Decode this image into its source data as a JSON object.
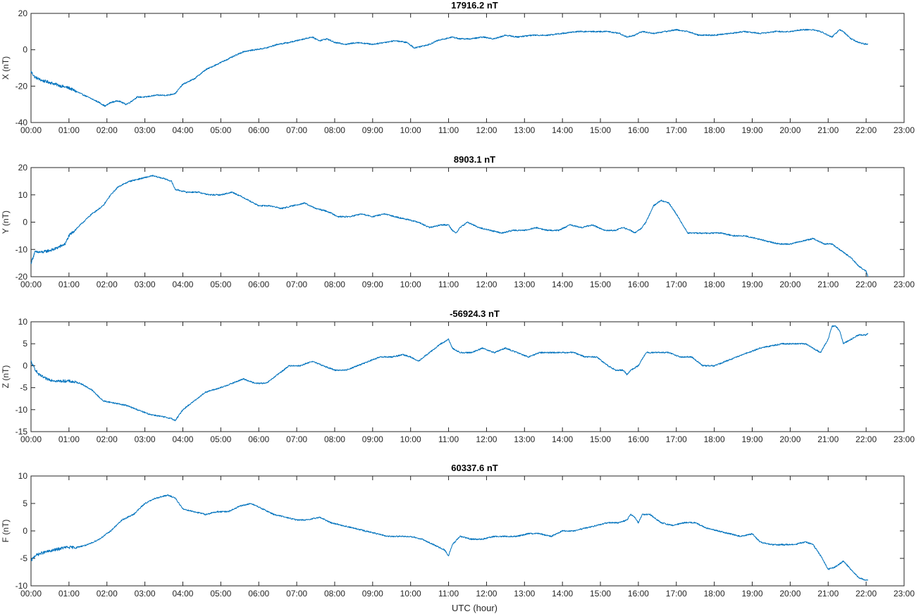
{
  "chart_data": [
    {
      "type": "line",
      "title": "17916.2 nT",
      "ylabel": "X (nT)",
      "xlabel": "",
      "xlim": [
        0,
        23
      ],
      "ylim": [
        -40,
        20
      ],
      "yticks": [
        -40,
        -20,
        0,
        20
      ],
      "xticks": [
        "00:00",
        "01:00",
        "02:00",
        "03:00",
        "04:00",
        "05:00",
        "06:00",
        "07:00",
        "08:00",
        "09:00",
        "10:00",
        "11:00",
        "12:00",
        "13:00",
        "14:00",
        "15:00",
        "16:00",
        "17:00",
        "18:00",
        "19:00",
        "20:00",
        "21:00",
        "22:00",
        "23:00"
      ],
      "series": [
        {
          "color": "#0072bd",
          "x": [
            0.0,
            0.1,
            0.3,
            0.5,
            0.8,
            1.0,
            1.2,
            1.5,
            1.8,
            1.95,
            2.1,
            2.3,
            2.5,
            2.6,
            2.8,
            3.0,
            3.3,
            3.6,
            3.8,
            4.0,
            4.3,
            4.6,
            4.8,
            5.0,
            5.3,
            5.6,
            5.9,
            6.2,
            6.5,
            6.8,
            7.0,
            7.2,
            7.4,
            7.6,
            7.8,
            8.0,
            8.3,
            8.6,
            9.0,
            9.3,
            9.6,
            9.9,
            10.1,
            10.3,
            10.5,
            10.7,
            10.9,
            11.1,
            11.3,
            11.6,
            11.9,
            12.2,
            12.5,
            12.8,
            13.2,
            13.6,
            14.0,
            14.4,
            14.8,
            15.2,
            15.5,
            15.7,
            15.9,
            16.1,
            16.4,
            16.7,
            17.0,
            17.3,
            17.6,
            18.0,
            18.4,
            18.8,
            19.2,
            19.6,
            20.0,
            20.3,
            20.6,
            20.8,
            21.0,
            21.1,
            21.2,
            21.3,
            21.4,
            21.6,
            21.8,
            22.0,
            22.05
          ],
          "values": [
            -12,
            -15,
            -17,
            -18,
            -20,
            -21,
            -23,
            -26,
            -29,
            -31,
            -29,
            -28,
            -30,
            -29,
            -26,
            -26,
            -25,
            -25,
            -24,
            -19,
            -16,
            -11,
            -9,
            -7,
            -4,
            -1,
            0,
            1,
            3,
            4,
            5,
            6,
            7,
            5,
            6,
            4,
            3,
            4,
            3,
            4,
            5,
            4,
            1,
            2,
            3,
            5,
            6,
            7,
            6,
            6,
            7,
            6,
            8,
            7,
            8,
            8,
            9,
            10,
            10,
            10,
            9,
            7,
            8,
            10,
            9,
            10,
            11,
            10,
            8,
            8,
            9,
            10,
            9,
            10,
            10,
            11,
            11,
            10,
            8,
            7,
            9,
            11,
            10,
            6,
            4,
            3,
            3
          ]
        }
      ]
    },
    {
      "type": "line",
      "title": "8903.1 nT",
      "ylabel": "Y (nT)",
      "xlabel": "",
      "xlim": [
        0,
        23
      ],
      "ylim": [
        -20,
        20
      ],
      "yticks": [
        -20,
        -10,
        0,
        10,
        20
      ],
      "xticks": [
        "00:00",
        "01:00",
        "02:00",
        "03:00",
        "04:00",
        "05:00",
        "06:00",
        "07:00",
        "08:00",
        "09:00",
        "10:00",
        "11:00",
        "12:00",
        "13:00",
        "14:00",
        "15:00",
        "16:00",
        "17:00",
        "18:00",
        "19:00",
        "20:00",
        "21:00",
        "22:00",
        "23:00"
      ],
      "series": [
        {
          "color": "#0072bd",
          "x": [
            0.0,
            0.1,
            0.3,
            0.6,
            0.9,
            1.0,
            1.3,
            1.6,
            1.9,
            2.1,
            2.3,
            2.6,
            2.9,
            3.2,
            3.5,
            3.7,
            3.8,
            4.1,
            4.4,
            4.7,
            5.0,
            5.3,
            5.6,
            6.0,
            6.3,
            6.6,
            6.9,
            7.2,
            7.5,
            7.8,
            8.1,
            8.4,
            8.7,
            9.0,
            9.3,
            9.6,
            9.9,
            10.2,
            10.5,
            10.8,
            11.0,
            11.1,
            11.2,
            11.3,
            11.5,
            11.8,
            12.1,
            12.4,
            12.7,
            13.0,
            13.3,
            13.6,
            13.9,
            14.2,
            14.5,
            14.8,
            15.1,
            15.4,
            15.6,
            15.8,
            15.9,
            16.0,
            16.1,
            16.2,
            16.4,
            16.6,
            16.8,
            17.0,
            17.3,
            17.6,
            17.9,
            18.2,
            18.5,
            18.8,
            19.1,
            19.4,
            19.7,
            20.0,
            20.3,
            20.6,
            20.9,
            21.1,
            21.3,
            21.6,
            21.8,
            22.0,
            22.05
          ],
          "values": [
            -15,
            -11,
            -11,
            -10,
            -8,
            -5,
            -1,
            3,
            6,
            10,
            13,
            15,
            16,
            17,
            16,
            15,
            12,
            11,
            11,
            10,
            10,
            11,
            9,
            6,
            6,
            5,
            6,
            7,
            5,
            4,
            2,
            2,
            3,
            2,
            3,
            2,
            1,
            0,
            -2,
            -1,
            -1,
            -3,
            -4,
            -2,
            0,
            -2,
            -3,
            -4,
            -3,
            -3,
            -2,
            -3,
            -3,
            -1,
            -2,
            -1,
            -3,
            -3,
            -2,
            -3,
            -4,
            -3,
            -2,
            0,
            6,
            8,
            7,
            3,
            -4,
            -4,
            -4,
            -4,
            -5,
            -5,
            -6,
            -7,
            -8,
            -8,
            -7,
            -6,
            -8,
            -8,
            -10,
            -13,
            -16,
            -18,
            -20
          ]
        }
      ]
    },
    {
      "type": "line",
      "title": "-56924.3 nT",
      "ylabel": "Z (nT)",
      "xlabel": "",
      "xlim": [
        0,
        23
      ],
      "ylim": [
        -15,
        10
      ],
      "yticks": [
        -15,
        -10,
        -5,
        0,
        5,
        10
      ],
      "xticks": [
        "00:00",
        "01:00",
        "02:00",
        "03:00",
        "04:00",
        "05:00",
        "06:00",
        "07:00",
        "08:00",
        "09:00",
        "10:00",
        "11:00",
        "12:00",
        "13:00",
        "14:00",
        "15:00",
        "16:00",
        "17:00",
        "18:00",
        "19:00",
        "20:00",
        "21:00",
        "22:00",
        "23:00"
      ],
      "series": [
        {
          "color": "#0072bd",
          "x": [
            0.0,
            0.05,
            0.2,
            0.4,
            0.7,
            1.0,
            1.3,
            1.6,
            1.9,
            2.2,
            2.5,
            2.8,
            3.1,
            3.4,
            3.7,
            3.8,
            4.0,
            4.3,
            4.6,
            5.0,
            5.3,
            5.6,
            5.9,
            6.2,
            6.5,
            6.8,
            7.1,
            7.4,
            7.7,
            8.0,
            8.3,
            8.6,
            8.9,
            9.2,
            9.5,
            9.8,
            10.0,
            10.2,
            10.5,
            10.8,
            11.0,
            11.1,
            11.3,
            11.6,
            11.9,
            12.2,
            12.5,
            12.8,
            13.1,
            13.4,
            13.7,
            14.0,
            14.3,
            14.6,
            14.9,
            15.2,
            15.4,
            15.6,
            15.7,
            15.8,
            16.0,
            16.2,
            16.5,
            16.8,
            17.1,
            17.4,
            17.7,
            18.0,
            18.3,
            18.6,
            18.9,
            19.2,
            19.5,
            19.8,
            20.1,
            20.4,
            20.6,
            20.8,
            21.0,
            21.1,
            21.2,
            21.3,
            21.4,
            21.6,
            21.8,
            22.0,
            22.05
          ],
          "values": [
            1,
            0,
            -2,
            -3,
            -3.5,
            -3.5,
            -4,
            -5.5,
            -8,
            -8.5,
            -9,
            -10,
            -11,
            -11.5,
            -12,
            -12.5,
            -10,
            -8,
            -6,
            -5,
            -4,
            -3,
            -4,
            -4,
            -2,
            0,
            0,
            1,
            0,
            -1,
            -1,
            0,
            1,
            2,
            2,
            2.5,
            2,
            1,
            3,
            5,
            6,
            4,
            3,
            3,
            4,
            3,
            4,
            3,
            2,
            3,
            3,
            3,
            3,
            2,
            2,
            0,
            -1,
            -1,
            -2,
            -1,
            0,
            3,
            3,
            3,
            2,
            2,
            0,
            0,
            1,
            2,
            3,
            4,
            4.5,
            5,
            5,
            5,
            4,
            3,
            6,
            9,
            9,
            8,
            5,
            6,
            7,
            7,
            7.5
          ]
        }
      ]
    },
    {
      "type": "line",
      "title": "60337.6 nT",
      "ylabel": "F (nT)",
      "xlabel": "UTC (hour)",
      "xlim": [
        0,
        23
      ],
      "ylim": [
        -10,
        10
      ],
      "yticks": [
        -10,
        -5,
        0,
        5,
        10
      ],
      "xticks": [
        "00:00",
        "01:00",
        "02:00",
        "03:00",
        "04:00",
        "05:00",
        "06:00",
        "07:00",
        "08:00",
        "09:00",
        "10:00",
        "11:00",
        "12:00",
        "13:00",
        "14:00",
        "15:00",
        "16:00",
        "17:00",
        "18:00",
        "19:00",
        "20:00",
        "21:00",
        "22:00",
        "23:00"
      ],
      "series": [
        {
          "color": "#0072bd",
          "x": [
            0.0,
            0.1,
            0.3,
            0.6,
            0.9,
            1.2,
            1.5,
            1.8,
            2.1,
            2.4,
            2.7,
            3.0,
            3.3,
            3.6,
            3.8,
            4.0,
            4.3,
            4.6,
            4.9,
            5.2,
            5.5,
            5.8,
            6.1,
            6.4,
            6.7,
            7.0,
            7.3,
            7.6,
            7.9,
            8.2,
            8.5,
            8.8,
            9.1,
            9.4,
            9.7,
            10.0,
            10.3,
            10.6,
            10.9,
            11.0,
            11.1,
            11.3,
            11.6,
            11.9,
            12.2,
            12.5,
            12.8,
            13.1,
            13.4,
            13.7,
            14.0,
            14.3,
            14.6,
            14.9,
            15.2,
            15.5,
            15.7,
            15.8,
            15.9,
            16.0,
            16.1,
            16.3,
            16.6,
            16.9,
            17.2,
            17.5,
            17.8,
            18.1,
            18.4,
            18.7,
            19.0,
            19.2,
            19.5,
            19.8,
            20.1,
            20.4,
            20.6,
            20.8,
            21.0,
            21.2,
            21.4,
            21.6,
            21.8,
            22.0,
            22.05
          ],
          "values": [
            -5.5,
            -4.5,
            -4,
            -3.5,
            -3,
            -3,
            -2.5,
            -1.5,
            0,
            2,
            3,
            5,
            6,
            6.5,
            6,
            4,
            3.5,
            3,
            3.5,
            3.5,
            4.5,
            5,
            4,
            3,
            2.5,
            2,
            2,
            2.5,
            1.5,
            1,
            0.5,
            0,
            -0.5,
            -1,
            -1,
            -1,
            -1.5,
            -2.5,
            -3.5,
            -4.5,
            -2.5,
            -1,
            -1.5,
            -1.5,
            -1,
            -1,
            -1,
            -0.5,
            -0.5,
            -1,
            0,
            0,
            0.5,
            1,
            1.5,
            1.5,
            2,
            3,
            2.5,
            1.5,
            3,
            3,
            1.5,
            1,
            1.5,
            1.5,
            0.5,
            0,
            -0.5,
            -1,
            -0.5,
            -2,
            -2.5,
            -2.5,
            -2.5,
            -2,
            -2.5,
            -4.5,
            -7,
            -6.5,
            -5.5,
            -7,
            -8.5,
            -9,
            -9
          ]
        }
      ]
    }
  ]
}
